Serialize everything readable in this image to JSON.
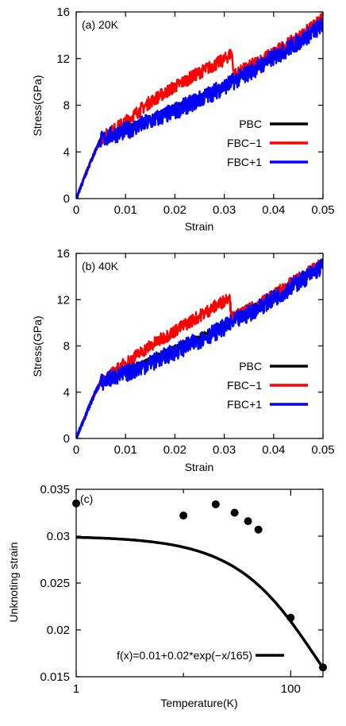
{
  "chart_data": [
    {
      "type": "line",
      "panel_label": "(a) 20K",
      "xlabel": "Strain",
      "ylabel": "Stress(GPa)",
      "xlim": [
        0,
        0.05
      ],
      "ylim": [
        0,
        16
      ],
      "xticks": [
        "0",
        "0.01",
        "0.02",
        "0.03",
        "0.04",
        "0.05"
      ],
      "yticks": [
        "0",
        "4",
        "8",
        "12",
        "16"
      ],
      "legend_position": "right",
      "series": [
        {
          "name": "PBC",
          "color": "#000000",
          "x": [
            0,
            0.002,
            0.004,
            0.005,
            0.007,
            0.01,
            0.015,
            0.02,
            0.025,
            0.03,
            0.035,
            0.04,
            0.045,
            0.05
          ],
          "y": [
            0,
            2.3,
            4.3,
            5.2,
            5.6,
            6.0,
            6.9,
            7.8,
            8.7,
            9.7,
            10.8,
            12.1,
            13.5,
            15.0
          ]
        },
        {
          "name": "FBC−1",
          "color": "#ff0000",
          "x": [
            0,
            0.002,
            0.004,
            0.005,
            0.007,
            0.01,
            0.015,
            0.02,
            0.025,
            0.03,
            0.0315,
            0.032,
            0.035,
            0.04,
            0.045,
            0.05
          ],
          "y": [
            0,
            2.2,
            4.2,
            5.1,
            5.7,
            6.6,
            8.3,
            9.6,
            10.8,
            11.9,
            12.5,
            10.6,
            11.3,
            12.5,
            13.8,
            15.4
          ]
        },
        {
          "name": "FBC+1",
          "color": "#0000ff",
          "x": [
            0,
            0.002,
            0.004,
            0.005,
            0.007,
            0.01,
            0.015,
            0.02,
            0.025,
            0.03,
            0.035,
            0.04,
            0.045,
            0.05
          ],
          "y": [
            0,
            2.2,
            4.2,
            5.0,
            5.4,
            5.8,
            6.6,
            7.5,
            8.5,
            9.6,
            10.8,
            12.1,
            13.4,
            14.9
          ]
        }
      ]
    },
    {
      "type": "line",
      "panel_label": "(b) 40K",
      "xlabel": "Strain",
      "ylabel": "Stress(GPa)",
      "xlim": [
        0,
        0.05
      ],
      "ylim": [
        0,
        16
      ],
      "xticks": [
        "0",
        "0.01",
        "0.02",
        "0.03",
        "0.04",
        "0.05"
      ],
      "yticks": [
        "0",
        "4",
        "8",
        "12",
        "16"
      ],
      "legend_position": "right",
      "series": [
        {
          "name": "PBC",
          "color": "#000000",
          "x": [
            0,
            0.002,
            0.004,
            0.005,
            0.007,
            0.01,
            0.015,
            0.02,
            0.025,
            0.03,
            0.035,
            0.04,
            0.045,
            0.05
          ],
          "y": [
            0,
            2.2,
            4.2,
            5.1,
            5.4,
            5.9,
            6.8,
            7.8,
            8.8,
            9.9,
            11.1,
            12.4,
            13.8,
            15.3
          ]
        },
        {
          "name": "FBC−1",
          "color": "#ff0000",
          "x": [
            0,
            0.002,
            0.004,
            0.005,
            0.007,
            0.01,
            0.015,
            0.02,
            0.025,
            0.03,
            0.031,
            0.0315,
            0.035,
            0.04,
            0.045,
            0.05
          ],
          "y": [
            0,
            2.1,
            4.1,
            4.9,
            5.5,
            6.5,
            8.0,
            9.3,
            10.6,
            11.9,
            12.4,
            10.4,
            11.1,
            12.4,
            13.8,
            15.1
          ]
        },
        {
          "name": "FBC+1",
          "color": "#0000ff",
          "x": [
            0,
            0.002,
            0.004,
            0.005,
            0.007,
            0.01,
            0.015,
            0.02,
            0.025,
            0.03,
            0.035,
            0.04,
            0.045,
            0.05
          ],
          "y": [
            0,
            2.1,
            4.1,
            4.8,
            5.2,
            5.6,
            6.5,
            7.5,
            8.5,
            9.6,
            10.8,
            12.1,
            13.5,
            14.9
          ]
        }
      ]
    },
    {
      "type": "scatter",
      "panel_label": "(c)",
      "xlabel": "Temperature(K)",
      "ylabel": "Unknoting strain",
      "xscale": "log",
      "xlim": [
        1,
        200
      ],
      "ylim": [
        0.015,
        0.035
      ],
      "xticks": [
        {
          "value": 1,
          "label": "1"
        },
        {
          "value": 100,
          "label": "100"
        }
      ],
      "xminor": [
        10
      ],
      "yticks": [
        "0.015",
        "0.02",
        "0.025",
        "0.03",
        "0.035"
      ],
      "legend_position": "bottom-right",
      "points": {
        "x": [
          1,
          10,
          20,
          30,
          40,
          50,
          100,
          200
        ],
        "y": [
          0.0335,
          0.0322,
          0.0334,
          0.0325,
          0.0316,
          0.0307,
          0.0213,
          0.016
        ]
      },
      "fit": {
        "name": "f(x)=0.01+0.02*exp(−x/165)",
        "color": "#000000"
      }
    }
  ]
}
